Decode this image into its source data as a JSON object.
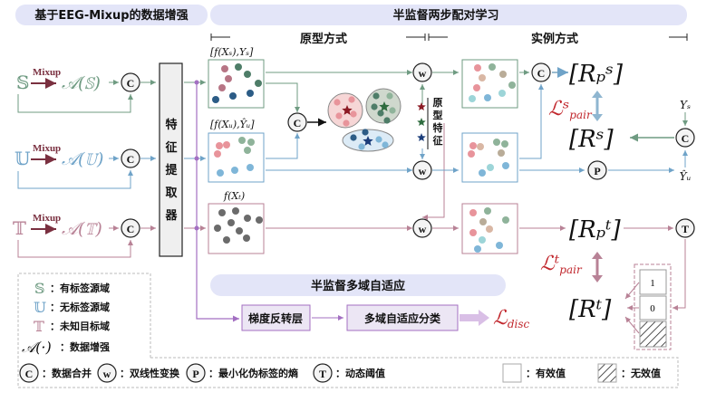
{
  "header": {
    "augment_title": "基于EEG-Mixup的数据增强",
    "pairing_title": "半监督两步配对学习",
    "prototype_mode": "原型方式",
    "instance_mode": "实例方式"
  },
  "domains": {
    "S": "𝕊",
    "U": "𝕌",
    "T": "𝕋",
    "mixup": "Mixup",
    "aug_S": "𝒜(𝕊)",
    "aug_U": "𝒜(𝕌)",
    "aug_T": "𝒜(𝕋)"
  },
  "feature_extractor": [
    "特",
    "征",
    "提",
    "取",
    "器"
  ],
  "feature_labels": {
    "source": "[f(Xₛ),Yₛ]",
    "unlabeled": "[f(Xᵤ),Ŷᵤ]",
    "target": "f(Xₜ)"
  },
  "prototype_features": [
    "原",
    "型",
    "特",
    "征"
  ],
  "outputs": {
    "Rps": "[Rₚˢ]",
    "Rs": "[Rˢ]",
    "Rpt": "[Rₚᵗ]",
    "Rt": "[Rᵗ]",
    "Lpair_s": "ℒˢ",
    "Lpair_t": "ℒᵗ",
    "pair_sub": "pair",
    "Ys": "Yₛ",
    "Yu_hat": "Ŷᵤ",
    "Ldisc": "ℒ",
    "disc_sub": "disc"
  },
  "threshold_values": [
    "1",
    "0"
  ],
  "adaptation": {
    "title": "半监督多域自适应",
    "grl": "梯度反转层",
    "classifier": "多域自适应分类"
  },
  "operators": {
    "concat": "C",
    "bilinear": "w",
    "entropy": "P",
    "threshold": "T"
  },
  "legend": {
    "S": "：有标签源域",
    "U": "：无标签源域",
    "T": "：未知目标域",
    "A_symbol": "𝒜(·)",
    "A": "：数据增强",
    "C": "：数据合并",
    "w": "：双线性变换",
    "P": "：最小化伪标签的熵",
    "Tt": "：动态阈值",
    "valid": "：有效值",
    "invalid": "：无效值"
  },
  "colors": {
    "source": "#6f9b82",
    "unlabeled": "#6fa3c8",
    "target": "#b88296",
    "purple": "#a36fc2",
    "pill": "#e3e5f8",
    "loss": "#c1272d"
  }
}
